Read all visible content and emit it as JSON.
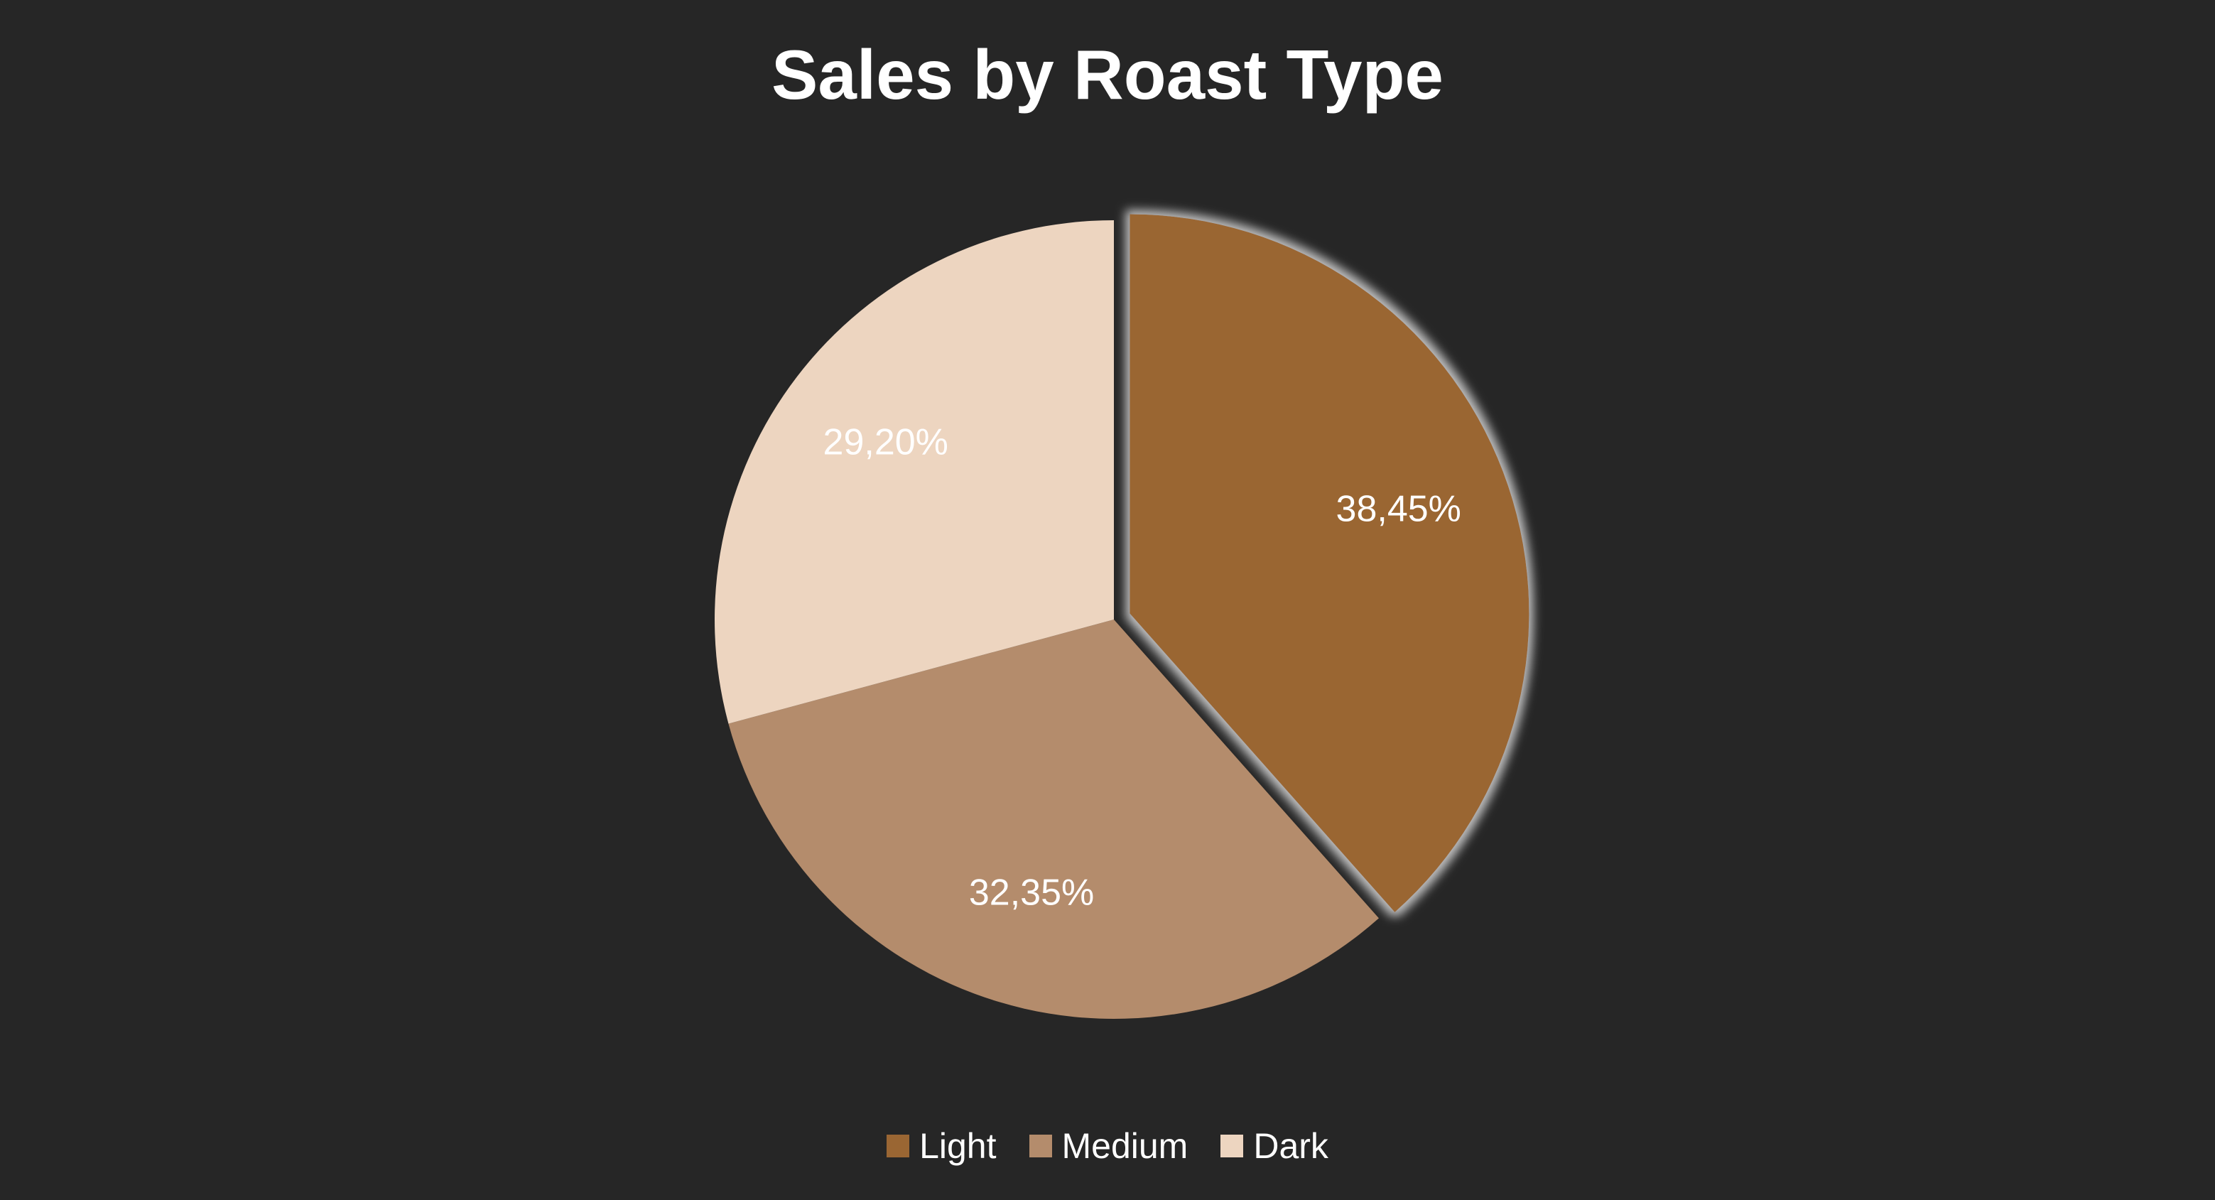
{
  "chart_data": {
    "type": "pie",
    "title": "Sales by Roast Type",
    "categories": [
      "Light",
      "Medium",
      "Dark"
    ],
    "values": [
      38.45,
      32.35,
      29.2
    ],
    "labels": [
      "38,45%",
      "32,35%",
      "29,20%"
    ],
    "colors": [
      "#9a6633",
      "#b48c6c",
      "#edd5c0"
    ],
    "exploded": "Light",
    "legend_position": "bottom"
  },
  "legend": {
    "items": [
      {
        "label": "Light",
        "color": "#9a6633"
      },
      {
        "label": "Medium",
        "color": "#b48c6c"
      },
      {
        "label": "Dark",
        "color": "#edd5c0"
      }
    ]
  },
  "theme": {
    "background": "#262626",
    "text": "#ffffff"
  }
}
